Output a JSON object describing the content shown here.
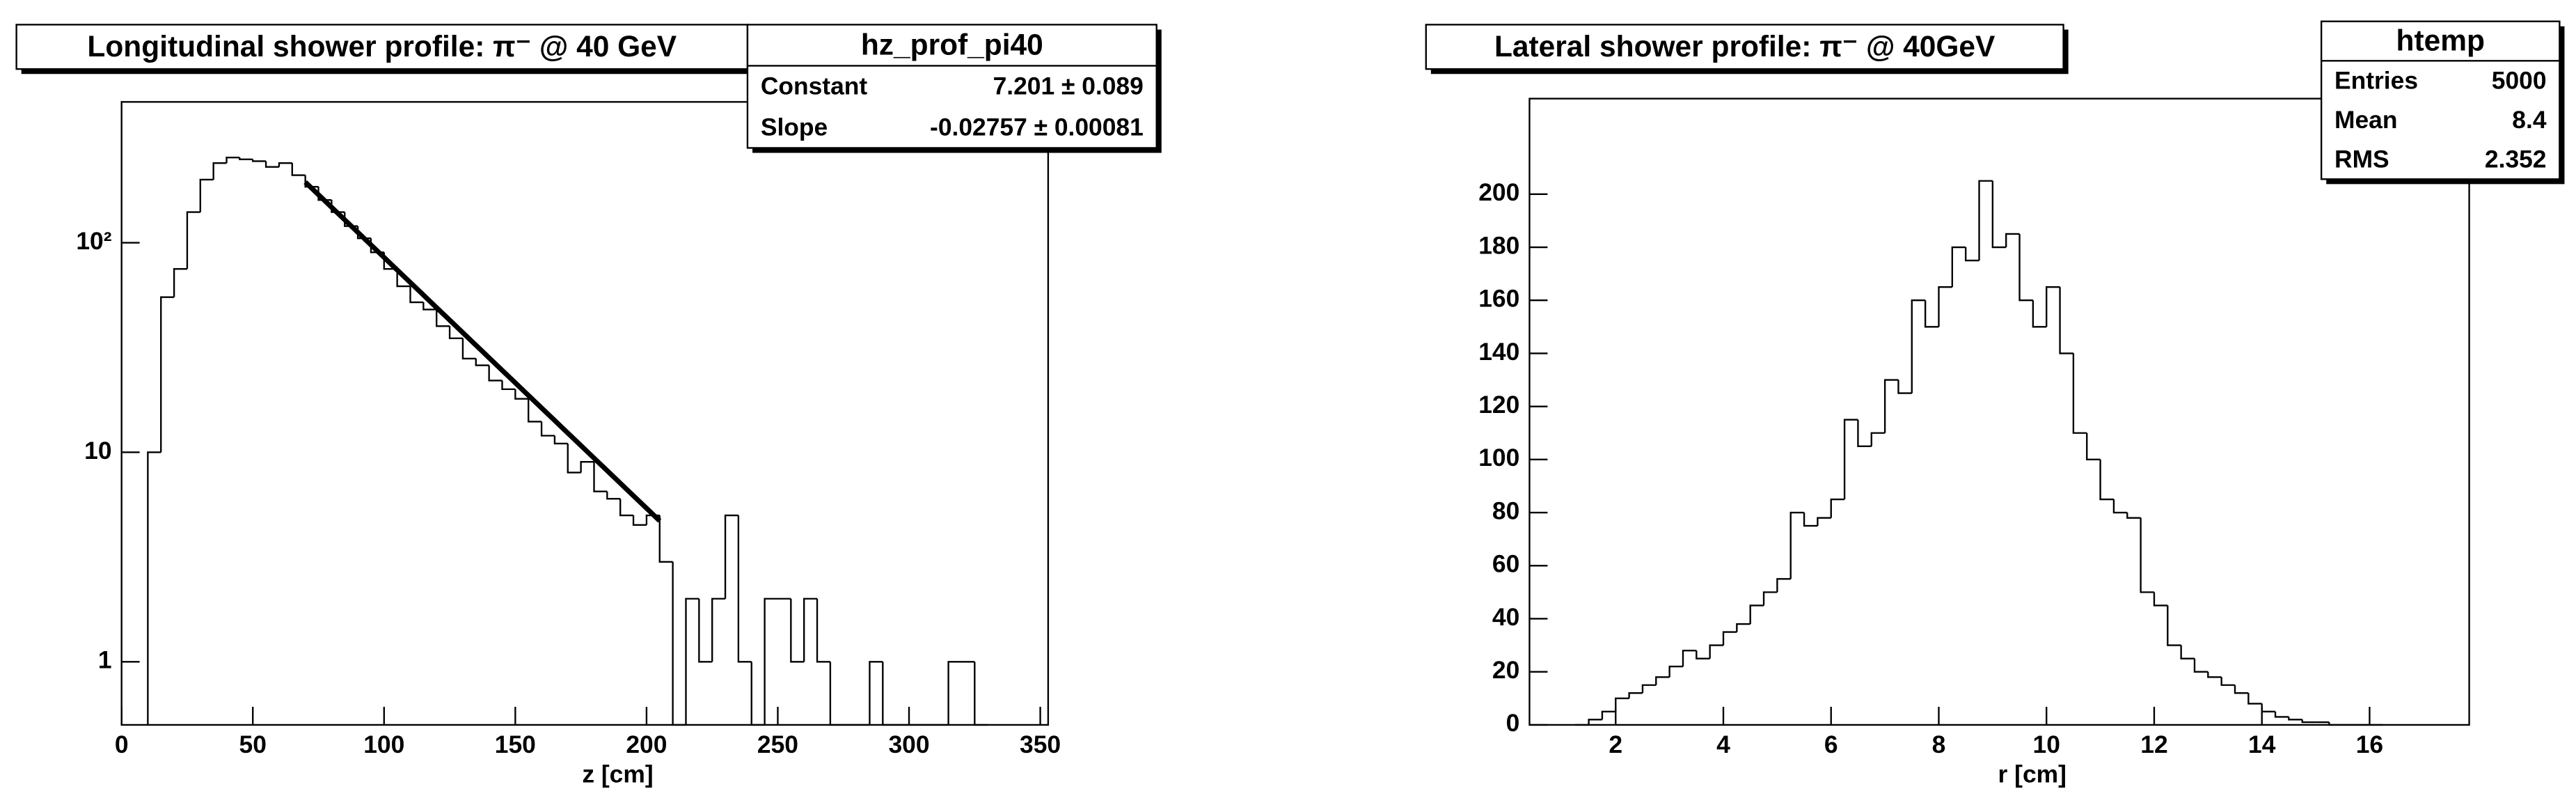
{
  "chart_data": [
    {
      "type": "histogram",
      "title": "Longitudinal shower profile: π⁻ @ 40 GeV",
      "x_label": "z [cm]",
      "xlim": [
        0,
        353
      ],
      "xticks": [
        0,
        50,
        100,
        150,
        200,
        250,
        300,
        350
      ],
      "ylim": [
        0.5,
        470
      ],
      "yscale": "log",
      "yticks": [
        1,
        10,
        {
          "value": 100,
          "label": "10²"
        }
      ],
      "color": "#000000",
      "bins": [
        10,
        15,
        20,
        25,
        30,
        35,
        40,
        45,
        50,
        55,
        60,
        65,
        70,
        75,
        80,
        85,
        90,
        95,
        100,
        105,
        110,
        115,
        120,
        125,
        130,
        135,
        140,
        145,
        150,
        155,
        160,
        165,
        170,
        175,
        180,
        185,
        190,
        195,
        200,
        205,
        210,
        215,
        220,
        225,
        230,
        235,
        240,
        245,
        250,
        255,
        260,
        265,
        270,
        275,
        280,
        285,
        290,
        295,
        300,
        305,
        310,
        315,
        320,
        325,
        330
      ],
      "counts": [
        10,
        55,
        75,
        140,
        200,
        240,
        255,
        250,
        245,
        230,
        240,
        210,
        185,
        160,
        140,
        120,
        105,
        90,
        75,
        62,
        52,
        48,
        40,
        35,
        28,
        26,
        22,
        20,
        18,
        14,
        12,
        11,
        8,
        9,
        6.5,
        6,
        5,
        4.5,
        5,
        3,
        0,
        2,
        1,
        2,
        5,
        1,
        0,
        2,
        2,
        1,
        2,
        1,
        0,
        0,
        0,
        1,
        0,
        0,
        0,
        0,
        0,
        1,
        1,
        0
      ],
      "fit": {
        "name": "hz_prof_pi40",
        "constant": 7.201,
        "slope": -0.02757,
        "range": [
          70,
          205
        ],
        "rows": [
          {
            "label": "Constant",
            "value": 7.201,
            "error": 0.089,
            "value_label": "7.201 ± 0.089"
          },
          {
            "label": "Slope",
            "value": -0.02757,
            "error": 0.00081,
            "value_label": "-0.02757 ± 0.00081"
          }
        ]
      }
    },
    {
      "type": "histogram",
      "title": "Lateral shower profile: π⁻ @  40GeV",
      "x_label": "r [cm]",
      "xlim": [
        0.4,
        17.85
      ],
      "xticks": [
        2,
        4,
        6,
        8,
        10,
        12,
        14,
        16
      ],
      "ylim": [
        0,
        236
      ],
      "yticks": [
        0,
        20,
        40,
        60,
        80,
        100,
        120,
        140,
        160,
        180,
        200
      ],
      "color": "#000000",
      "bins": [
        1.25,
        1.5,
        1.75,
        2,
        2.25,
        2.5,
        2.75,
        3,
        3.25,
        3.5,
        3.75,
        4,
        4.25,
        4.5,
        4.75,
        5,
        5.25,
        5.5,
        5.75,
        6,
        6.25,
        6.5,
        6.75,
        7,
        7.25,
        7.5,
        7.75,
        8,
        8.25,
        8.5,
        8.75,
        9,
        9.25,
        9.5,
        9.75,
        10,
        10.25,
        10.5,
        10.75,
        11,
        11.25,
        11.5,
        11.75,
        12,
        12.25,
        12.5,
        12.75,
        13,
        13.25,
        13.5,
        13.75,
        14,
        14.25,
        14.5,
        14.75,
        15,
        15.25,
        15.5,
        15.75,
        16,
        16.25
      ],
      "counts": [
        0,
        2,
        5,
        10,
        12,
        15,
        18,
        22,
        28,
        25,
        30,
        35,
        38,
        45,
        50,
        55,
        80,
        75,
        78,
        85,
        115,
        105,
        110,
        130,
        125,
        160,
        150,
        165,
        180,
        175,
        205,
        180,
        185,
        160,
        150,
        165,
        140,
        110,
        100,
        85,
        80,
        78,
        50,
        45,
        30,
        25,
        20,
        18,
        15,
        12,
        8,
        5,
        3,
        2,
        1,
        1,
        0,
        0,
        0,
        0
      ],
      "stats_title": "htemp",
      "stats": [
        {
          "label": "Entries",
          "value": 5000
        },
        {
          "label": "Mean",
          "value": 8.4
        },
        {
          "label": "RMS",
          "value": 2.352
        }
      ]
    }
  ]
}
